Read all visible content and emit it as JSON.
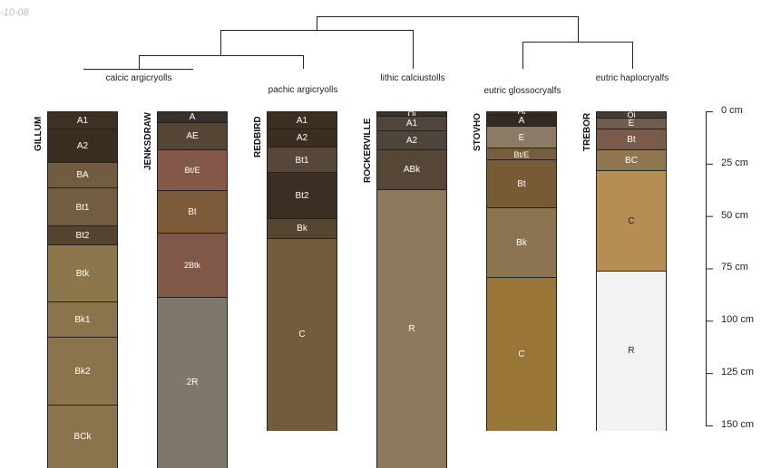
{
  "date_fragment": "-10-08",
  "taxa": [
    "calcic argicryolls",
    "pachic argicryolls",
    "lithic calciustolls",
    "eutric glossocryalfs",
    "eutric haplocryalfs"
  ],
  "axis": {
    "ticks": [
      0,
      25,
      50,
      75,
      100,
      125,
      150
    ],
    "unit": "cm",
    "labels": [
      "0 cm",
      "25 cm",
      "50 cm",
      "75 cm",
      "100 cm",
      "125 cm",
      "150 cm"
    ]
  },
  "profiles": [
    {
      "name": "GILLUM",
      "horizons": [
        {
          "name": "A1",
          "top": 0,
          "bottom": 8,
          "color": "#3d3123"
        },
        {
          "name": "A2",
          "top": 8,
          "bottom": 24,
          "color": "#3b2d20"
        },
        {
          "name": "BA",
          "top": 24,
          "bottom": 36.5,
          "color": "#725c40"
        },
        {
          "name": "Bt1",
          "top": 36.5,
          "bottom": 54.5,
          "color": "#735d42"
        },
        {
          "name": "Bt2",
          "top": 54.5,
          "bottom": 63.5,
          "color": "#56432f"
        },
        {
          "name": "Btk",
          "top": 63.5,
          "bottom": 91,
          "color": "#8d764c"
        },
        {
          "name": "Bk1",
          "top": 91,
          "bottom": 107.5,
          "color": "#8b744b"
        },
        {
          "name": "Bk2",
          "top": 107.5,
          "bottom": 140,
          "color": "#8b744b"
        },
        {
          "name": "BCk",
          "top": 140,
          "bottom": 170,
          "color": "#8b744b"
        }
      ]
    },
    {
      "name": "JENKSDRAW",
      "horizons": [
        {
          "name": "A",
          "top": 0,
          "bottom": 5,
          "color": "#36302b"
        },
        {
          "name": "AE",
          "top": 5,
          "bottom": 18,
          "color": "#544535"
        },
        {
          "name": "Bt/E",
          "top": 18,
          "bottom": 37.5,
          "color": "#835848"
        },
        {
          "name": "Bt",
          "top": 37.5,
          "bottom": 58,
          "color": "#7c5939"
        },
        {
          "name": "2Btk",
          "top": 58,
          "bottom": 88.5,
          "color": "#815747"
        },
        {
          "name": "2R",
          "top": 88.5,
          "bottom": 170,
          "color": "#7e776b"
        }
      ]
    },
    {
      "name": "REDBIRD",
      "horizons": [
        {
          "name": "A1",
          "top": 0,
          "bottom": 8,
          "color": "#3b2f22"
        },
        {
          "name": "A2",
          "top": 8,
          "bottom": 17,
          "color": "#3b2e21"
        },
        {
          "name": "Bt1",
          "top": 17,
          "bottom": 29,
          "color": "#57463a"
        },
        {
          "name": "Bt2",
          "top": 29,
          "bottom": 51,
          "color": "#3b2e22"
        },
        {
          "name": "Bk",
          "top": 51,
          "bottom": 60.5,
          "color": "#56452f"
        },
        {
          "name": "C",
          "top": 60.5,
          "bottom": 152,
          "color": "#735b3e"
        }
      ]
    },
    {
      "name": "ROCKERVILLE",
      "horizons": [
        {
          "name": "Oi",
          "top": 0,
          "bottom": 2,
          "color": "#3a3128"
        },
        {
          "name": "A1",
          "top": 2,
          "bottom": 9,
          "color": "#4f453c"
        },
        {
          "name": "A2",
          "top": 9,
          "bottom": 18,
          "color": "#4e443a"
        },
        {
          "name": "ABk",
          "top": 18,
          "bottom": 37,
          "color": "#554636"
        },
        {
          "name": "R",
          "top": 37,
          "bottom": 170,
          "color": "#8d775d"
        }
      ]
    },
    {
      "name": "STOVHO",
      "horizons": [
        {
          "name": "Oi",
          "top": 0,
          "bottom": 1.5,
          "color": "#3a3128"
        },
        {
          "name": "A",
          "top": 1.5,
          "bottom": 7,
          "color": "#332a22"
        },
        {
          "name": "E",
          "top": 7,
          "bottom": 17.5,
          "color": "#8a7a66"
        },
        {
          "name": "Bt/E",
          "top": 17.5,
          "bottom": 23,
          "color": "#765d40"
        },
        {
          "name": "Bt",
          "top": 23,
          "bottom": 46,
          "color": "#775b36"
        },
        {
          "name": "Bk",
          "top": 46,
          "bottom": 79,
          "color": "#8d7450"
        },
        {
          "name": "C",
          "top": 79,
          "bottom": 152,
          "color": "#9a7538"
        }
      ]
    },
    {
      "name": "TREBOR",
      "horizons": [
        {
          "name": "Oi",
          "top": 0,
          "bottom": 3,
          "color": "#463c33"
        },
        {
          "name": "E",
          "top": 3,
          "bottom": 8,
          "color": "#6e5c4c"
        },
        {
          "name": "Bt",
          "top": 8,
          "bottom": 18,
          "color": "#7a5b4a"
        },
        {
          "name": "BC",
          "top": 18,
          "bottom": 28,
          "color": "#8f7550"
        },
        {
          "name": "C",
          "top": 28,
          "bottom": 76,
          "color": "#b68d53",
          "text": "#222"
        },
        {
          "name": "R",
          "top": 76,
          "bottom": 152,
          "color": "#f2f2f2",
          "text": "#222"
        }
      ]
    }
  ]
}
